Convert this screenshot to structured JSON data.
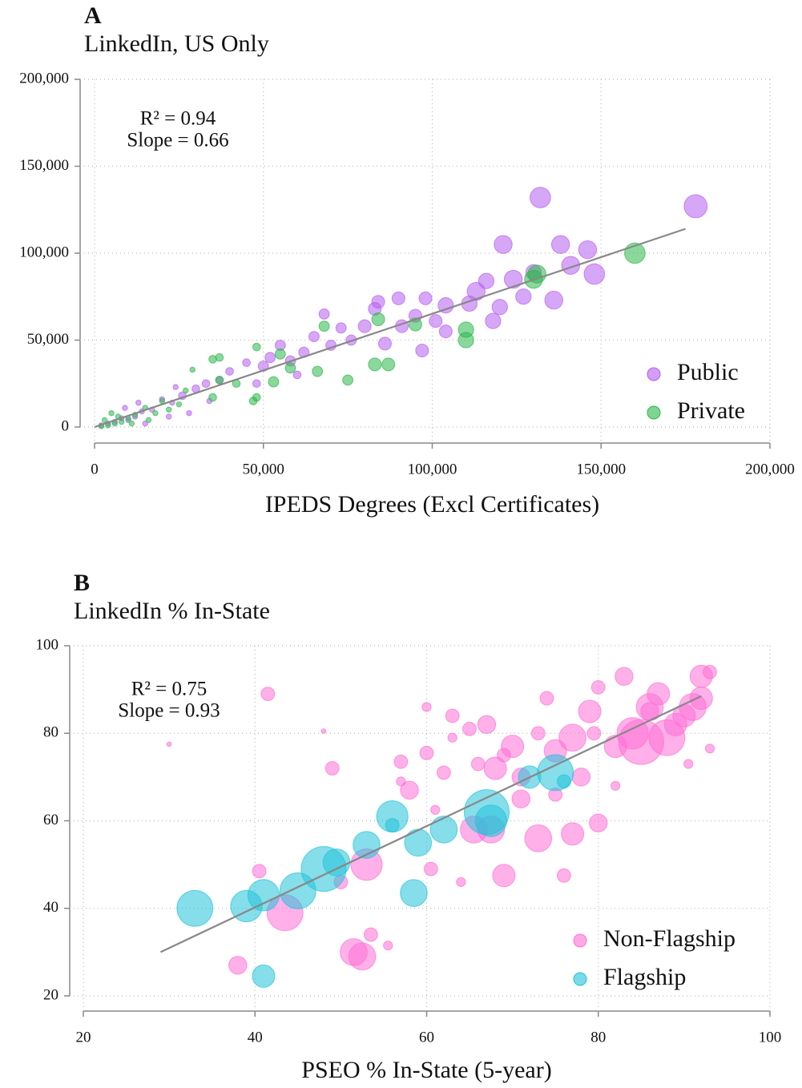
{
  "chart_data": [
    {
      "type": "scatter",
      "label": "A",
      "title": "LinkedIn, US Only",
      "xlabel": "IPEDS Degrees (Excl Certificates)",
      "annotations": [
        "R² = 0.94",
        "Slope = 0.66"
      ],
      "xlim": [
        0,
        200000
      ],
      "ylim": [
        0,
        200000
      ],
      "xticks": [
        0,
        {
          "value": 50000,
          "label": "50,000"
        },
        {
          "value": 100000,
          "label": "100,000"
        },
        {
          "value": 150000,
          "label": "150,000"
        },
        {
          "value": 200000,
          "label": "200,000"
        }
      ],
      "yticks": [
        0,
        {
          "value": 50000,
          "label": "50,000"
        },
        {
          "value": 100000,
          "label": "100,000"
        },
        {
          "value": 150000,
          "label": "150,000"
        },
        {
          "value": 200000,
          "label": "200,000"
        }
      ],
      "grid": true,
      "legend": "lower right",
      "trend": {
        "x": [
          0,
          175000
        ],
        "values": [
          0,
          114000
        ],
        "color": "#888888"
      },
      "series": [
        {
          "name": "Public",
          "color": "#b65ef0",
          "x": [
            178000,
            132000,
            121000,
            138000,
            146000,
            148000,
            141000,
            130000,
            124000,
            116000,
            113000,
            120000,
            127000,
            136000,
            104000,
            111000,
            118000,
            90000,
            83000,
            84000,
            98000,
            104000,
            97000,
            91000,
            80000,
            73000,
            76000,
            70000,
            65000,
            62000,
            68000,
            55000,
            52000,
            50000,
            45000,
            40000,
            37000,
            33000,
            30000,
            26000,
            23000,
            20000,
            17000,
            14000,
            12000,
            10000,
            8000,
            6000,
            4000,
            2000,
            15000,
            22000,
            28000,
            34000,
            48000,
            58000,
            86000,
            95000,
            101000,
            60000,
            24000,
            9000,
            13000
          ],
          "values": [
            127000,
            132000,
            105000,
            105000,
            102000,
            88000,
            93000,
            89000,
            85000,
            84000,
            78000,
            69000,
            75000,
            73000,
            70000,
            71000,
            61000,
            74000,
            68000,
            72000,
            74000,
            55000,
            44000,
            58000,
            58000,
            57000,
            50000,
            47000,
            52000,
            43000,
            65000,
            47000,
            40000,
            35000,
            37000,
            32000,
            27000,
            25000,
            22000,
            18000,
            14000,
            16000,
            10000,
            9000,
            6000,
            4000,
            5000,
            3000,
            2000,
            1000,
            2000,
            6000,
            8000,
            15000,
            25000,
            38000,
            48000,
            64000,
            61000,
            30000,
            23000,
            11000,
            14000
          ],
          "sizes": [
            9,
            8,
            7,
            7,
            7,
            8,
            7,
            6,
            7,
            6,
            7,
            6,
            6,
            7,
            6,
            6,
            6,
            5,
            5,
            5,
            5,
            5,
            5,
            5,
            5,
            4,
            4,
            4,
            4,
            4,
            4,
            4,
            4,
            4,
            3,
            3,
            3,
            3,
            3,
            3,
            2,
            2,
            2,
            2,
            2,
            2,
            2,
            2,
            2,
            2,
            2,
            2,
            2,
            2,
            3,
            4,
            5,
            5,
            5,
            3,
            2,
            2,
            2
          ]
        },
        {
          "name": "Private",
          "color": "#2bb84a",
          "x": [
            160000,
            131000,
            130000,
            110000,
            110000,
            95000,
            87000,
            83000,
            75000,
            84000,
            68000,
            66000,
            58000,
            53000,
            55000,
            48000,
            47000,
            48000,
            42000,
            37000,
            35000,
            37000,
            35000,
            29000,
            27000,
            25000,
            20000,
            18000,
            15000,
            12000,
            10000,
            8000,
            6000,
            4000,
            2000,
            3000,
            7000,
            11000,
            16000,
            22000,
            5000
          ],
          "values": [
            100000,
            88000,
            85000,
            56000,
            50000,
            59000,
            36000,
            36000,
            27000,
            62000,
            58000,
            32000,
            34000,
            26000,
            42000,
            46000,
            15000,
            17000,
            25000,
            27000,
            17000,
            40000,
            39000,
            33000,
            21000,
            13000,
            15000,
            8000,
            11000,
            7000,
            5000,
            3000,
            2000,
            1000,
            500,
            4000,
            6000,
            2000,
            4000,
            10000,
            8000
          ],
          "sizes": [
            8,
            7,
            7,
            6,
            6,
            5,
            5,
            5,
            4,
            5,
            4,
            4,
            4,
            4,
            4,
            3,
            3,
            3,
            3,
            3,
            3,
            3,
            3,
            2,
            2,
            2,
            2,
            2,
            2,
            2,
            2,
            2,
            2,
            2,
            2,
            2,
            2,
            2,
            2,
            2,
            2
          ]
        }
      ]
    },
    {
      "type": "scatter",
      "label": "B",
      "title": "LinkedIn % In-State",
      "xlabel": "PSEO % In-State (5-year)",
      "annotations": [
        "R² = 0.75",
        "Slope = 0.93"
      ],
      "xlim": [
        20,
        100
      ],
      "ylim": [
        20,
        100
      ],
      "xticks": [
        20,
        40,
        60,
        80,
        100
      ],
      "yticks": [
        20,
        40,
        60,
        80,
        100
      ],
      "grid": true,
      "legend": "lower right",
      "trend": {
        "x": [
          29,
          92
        ],
        "values": [
          30,
          88.5
        ],
        "color": "#888888"
      },
      "series": [
        {
          "name": "Non-Flagship",
          "color": "#ff6fd6",
          "x": [
            30,
            41.5,
            38,
            40.5,
            43.5,
            49,
            48,
            50,
            51.5,
            52.5,
            53,
            53.5,
            55.5,
            57,
            57,
            58,
            60,
            60.5,
            60,
            61,
            62,
            63,
            64,
            65,
            65.5,
            67,
            67.5,
            68,
            69,
            70,
            71,
            73,
            74,
            75,
            76,
            77,
            77,
            78,
            79,
            80,
            80,
            82,
            83,
            84,
            85,
            86,
            87,
            88,
            89,
            90,
            91,
            92,
            92,
            93,
            93,
            90.5,
            86,
            82,
            79.5,
            73,
            71,
            75,
            69,
            66,
            63
          ],
          "values": [
            77.5,
            89,
            27,
            48.5,
            39,
            72,
            80.5,
            46,
            30,
            29,
            50,
            34,
            31.5,
            69,
            73.5,
            67,
            75.5,
            49,
            86,
            62.5,
            71,
            84,
            46,
            81,
            58,
            82,
            58,
            72,
            47.5,
            77,
            65,
            56,
            88,
            76,
            47.5,
            79,
            57,
            70,
            85,
            59.5,
            90.5,
            77,
            93,
            80,
            78,
            86,
            89,
            79,
            82,
            84,
            86,
            88,
            93,
            94,
            76.5,
            73,
            85,
            68,
            80,
            80,
            70,
            66,
            75,
            73,
            79
          ],
          "sizes": [
            1,
            3,
            4,
            3,
            8,
            3,
            1,
            3,
            6,
            6,
            7,
            3,
            2,
            2,
            3,
            4,
            3,
            3,
            2,
            2,
            3,
            3,
            2,
            3,
            6,
            4,
            6,
            5,
            5,
            5,
            4,
            6,
            3,
            5,
            3,
            6,
            5,
            4,
            5,
            4,
            3,
            5,
            4,
            7,
            10,
            6,
            5,
            8,
            5,
            5,
            6,
            5,
            5,
            3,
            2,
            2,
            4,
            2,
            3,
            3,
            4,
            3,
            3,
            3,
            2
          ]
        },
        {
          "name": "Flagship",
          "color": "#22c3d8",
          "x": [
            33,
            39,
            41,
            45,
            48,
            49.5,
            53,
            56,
            59,
            62,
            58.5,
            67,
            67.5,
            72,
            75,
            76,
            41,
            56
          ],
          "values": [
            40,
            40.5,
            43,
            44,
            49,
            50.5,
            54.5,
            61,
            55,
            58,
            43.5,
            62,
            60,
            70,
            71,
            69,
            24.5,
            59
          ],
          "sizes": [
            8,
            7,
            7,
            8,
            10,
            6,
            6,
            7,
            6,
            6,
            6,
            10,
            7,
            5,
            8,
            3,
            5,
            3
          ]
        }
      ]
    }
  ]
}
